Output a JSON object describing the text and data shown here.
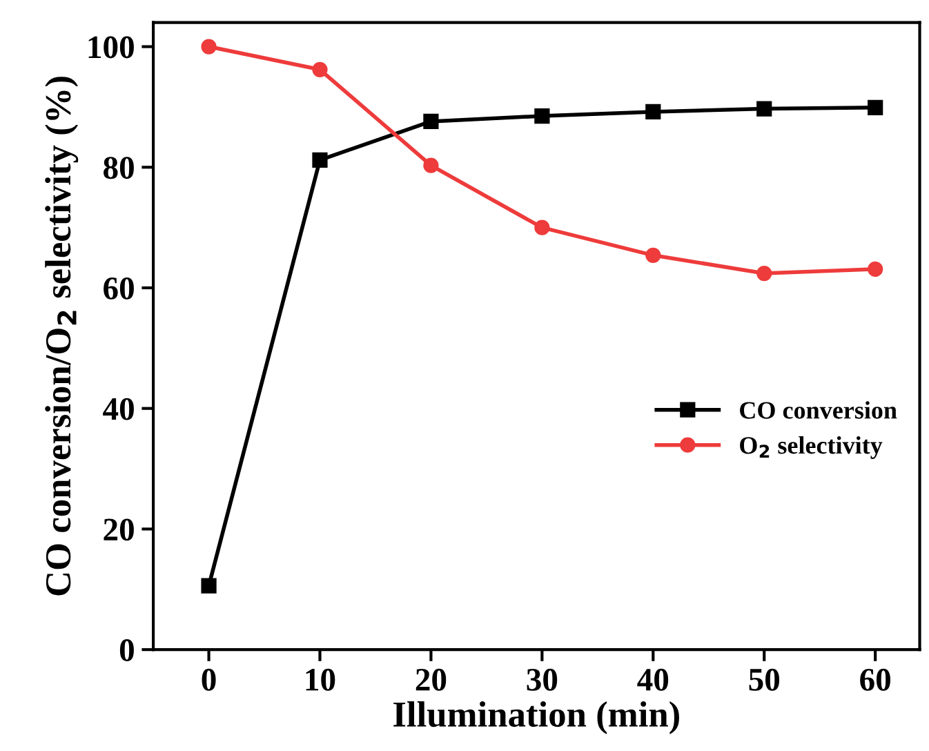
{
  "chart_data": {
    "type": "line",
    "xlabel": "Illumination (min)",
    "ylabel": "CO conversion/O$_{2}$ selectivity (%)",
    "x": [
      0,
      10,
      20,
      30,
      40,
      50,
      60
    ],
    "series": [
      {
        "name": "CO conversion",
        "color": "#000000",
        "marker": "square",
        "values": [
          10.6,
          81.2,
          87.6,
          88.5,
          89.2,
          89.7,
          89.9
        ]
      },
      {
        "name": "O$_{2}$ selectivity",
        "color": "#ee3b3b",
        "marker": "circle",
        "values": [
          100,
          96.2,
          80.3,
          70,
          65.4,
          62.4,
          63.1
        ]
      }
    ],
    "xlim": [
      -5,
      64
    ],
    "xticks": [
      0,
      10,
      20,
      30,
      40,
      50,
      60
    ],
    "ylim": [
      0,
      104
    ],
    "yticks": [
      0,
      20,
      40,
      60,
      80,
      100
    ],
    "grid": false,
    "legend": "right",
    "line_style": "solid"
  }
}
